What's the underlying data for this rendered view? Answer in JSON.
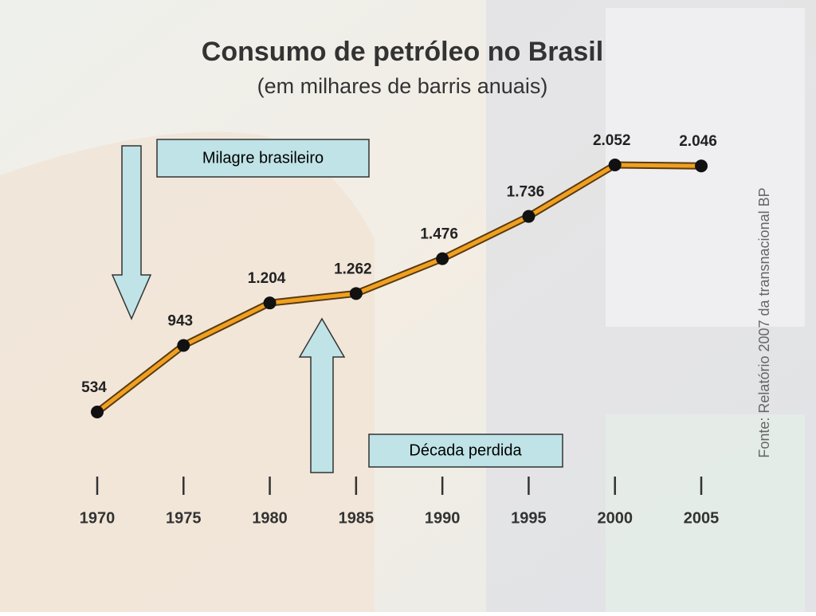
{
  "chart_data": {
    "type": "line",
    "title": "Consumo de petróleo no Brasil",
    "subtitle": "(em milhares de barris anuais)",
    "x": [
      1970,
      1975,
      1980,
      1985,
      1990,
      1995,
      2000,
      2005
    ],
    "xlim": [
      1970,
      2005
    ],
    "xticks": [
      1970,
      1975,
      1980,
      1985,
      1990,
      1995,
      2000,
      2005
    ],
    "values": [
      534,
      943,
      1204,
      1262,
      1476,
      1736,
      2052,
      2046
    ],
    "value_labels": [
      "534",
      "943",
      "1.204",
      "1.262",
      "1.476",
      "1.736",
      "2.052",
      "2.046"
    ],
    "color": "#f0a020",
    "annotations": [
      "Milagre brasileiro",
      "Década perdida"
    ],
    "source": "Fonte: Relatório 2007 da transnacional BP"
  }
}
